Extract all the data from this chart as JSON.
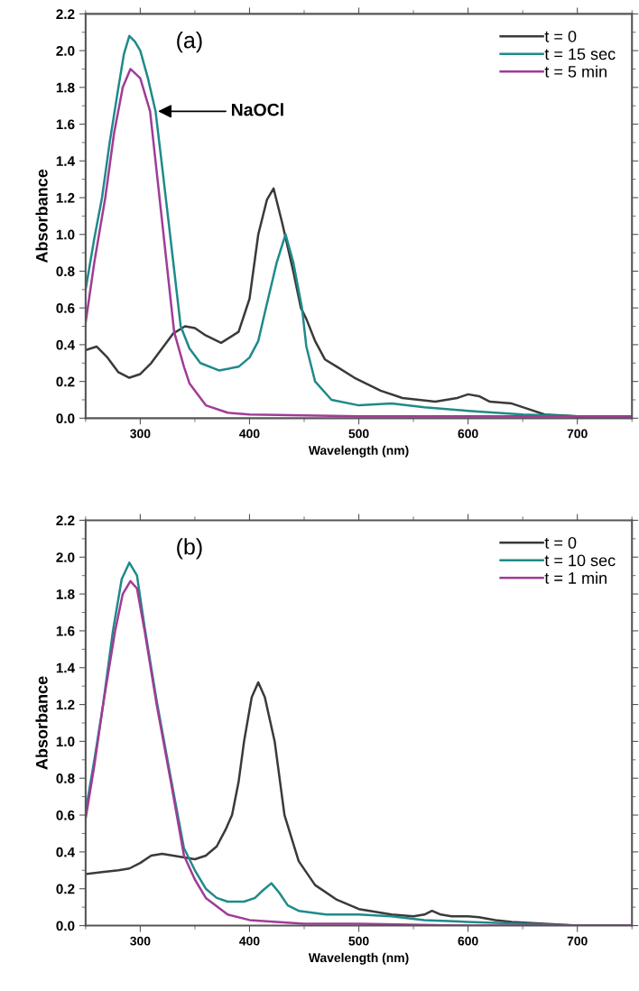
{
  "chart_data": [
    {
      "type": "line",
      "xlabel": "Wavelength (nm)",
      "ylabel": "Absorbance",
      "annotations": [
        "(a)",
        {
          "text": "NaOCl",
          "x": 314,
          "y": 1.67
        }
      ],
      "legend": "top right",
      "xlim": [
        250,
        750
      ],
      "xticks": [
        300,
        400,
        500,
        600,
        700
      ],
      "ylim": [
        0,
        2.2
      ],
      "yticks": [
        {
          "value": 0,
          "label": "0.0"
        },
        {
          "value": 0.2,
          "label": "0.2"
        },
        {
          "value": 0.4,
          "label": "0.4"
        },
        {
          "value": 0.6,
          "label": "0.6"
        },
        {
          "value": 0.8,
          "label": "0.8"
        },
        {
          "value": 1,
          "label": "1.0"
        },
        {
          "value": 1.2,
          "label": "1.2"
        },
        {
          "value": 1.4,
          "label": "1.4"
        },
        {
          "value": 1.6,
          "label": "1.6"
        },
        {
          "value": 1.8,
          "label": "1.8"
        },
        {
          "value": 2,
          "label": "2.0"
        },
        {
          "value": 2.2,
          "label": "2.2"
        }
      ],
      "series": [
        {
          "name": "t = 0",
          "color": "#3a3a3a",
          "x": [
            250,
            260,
            270,
            280,
            290,
            300,
            310,
            320,
            330,
            341,
            350,
            360,
            374,
            390,
            400,
            408,
            416,
            422,
            430,
            440,
            447,
            452,
            460,
            469,
            480,
            496,
            520,
            540,
            570,
            590,
            600,
            610,
            620,
            640,
            655,
            670,
            700,
            750
          ],
          "values": [
            0.37,
            0.39,
            0.33,
            0.25,
            0.22,
            0.24,
            0.3,
            0.38,
            0.46,
            0.5,
            0.49,
            0.45,
            0.41,
            0.47,
            0.65,
            1.0,
            1.19,
            1.25,
            1.06,
            0.8,
            0.6,
            0.54,
            0.42,
            0.32,
            0.28,
            0.22,
            0.15,
            0.11,
            0.09,
            0.11,
            0.13,
            0.12,
            0.09,
            0.08,
            0.05,
            0.02,
            0.01,
            0.01
          ]
        },
        {
          "name": "t = 15 sec",
          "color": "#1f8a8a",
          "x": [
            250,
            258,
            265,
            272,
            280,
            285,
            290,
            295,
            300,
            307,
            314,
            320,
            330,
            337,
            345,
            355,
            372,
            390,
            400,
            408,
            415,
            425,
            433,
            440,
            448,
            452,
            460,
            475,
            500,
            530,
            560,
            600,
            650,
            700,
            750
          ],
          "values": [
            0.7,
            0.98,
            1.2,
            1.5,
            1.8,
            1.98,
            2.08,
            2.05,
            2.0,
            1.85,
            1.67,
            1.37,
            0.86,
            0.5,
            0.38,
            0.3,
            0.26,
            0.28,
            0.33,
            0.42,
            0.6,
            0.85,
            1.0,
            0.85,
            0.6,
            0.39,
            0.2,
            0.1,
            0.07,
            0.08,
            0.06,
            0.04,
            0.02,
            0.01,
            0.01
          ]
        },
        {
          "name": "t = 5 min",
          "color": "#a03c96",
          "x": [
            250,
            258,
            268,
            276,
            284,
            291,
            300,
            309,
            320,
            331,
            340,
            345,
            360,
            380,
            400,
            450,
            500,
            600,
            750
          ],
          "values": [
            0.52,
            0.85,
            1.2,
            1.55,
            1.8,
            1.9,
            1.85,
            1.67,
            1.07,
            0.47,
            0.28,
            0.19,
            0.07,
            0.03,
            0.02,
            0.015,
            0.01,
            0.01,
            0.01
          ]
        }
      ]
    },
    {
      "type": "line",
      "xlabel": "Wavelength (nm)",
      "ylabel": "Absorbance",
      "annotations": [
        "(b)"
      ],
      "legend": "top right",
      "xlim": [
        250,
        750
      ],
      "xticks": [
        300,
        400,
        500,
        600,
        700
      ],
      "ylim": [
        0,
        2.2
      ],
      "yticks": [
        {
          "value": 0,
          "label": "0.0"
        },
        {
          "value": 0.2,
          "label": "0.2"
        },
        {
          "value": 0.4,
          "label": "0.4"
        },
        {
          "value": 0.6,
          "label": "0.6"
        },
        {
          "value": 0.8,
          "label": "0.8"
        },
        {
          "value": 1,
          "label": "1.0"
        },
        {
          "value": 1.2,
          "label": "1.2"
        },
        {
          "value": 1.4,
          "label": "1.4"
        },
        {
          "value": 1.6,
          "label": "1.6"
        },
        {
          "value": 1.8,
          "label": "1.8"
        },
        {
          "value": 2,
          "label": "2.0"
        },
        {
          "value": 2.2,
          "label": "2.2"
        }
      ],
      "series": [
        {
          "name": "t = 0",
          "color": "#3a3a3a",
          "x": [
            250,
            265,
            280,
            290,
            300,
            310,
            320,
            330,
            340,
            350,
            360,
            370,
            378,
            384,
            390,
            395,
            402,
            408,
            414,
            423,
            432,
            445,
            460,
            480,
            500,
            530,
            550,
            560,
            567,
            575,
            585,
            600,
            610,
            625,
            640,
            670,
            700,
            750
          ],
          "values": [
            0.28,
            0.29,
            0.3,
            0.31,
            0.34,
            0.38,
            0.39,
            0.38,
            0.37,
            0.36,
            0.38,
            0.43,
            0.52,
            0.6,
            0.78,
            1.0,
            1.24,
            1.32,
            1.24,
            1.0,
            0.6,
            0.35,
            0.22,
            0.14,
            0.09,
            0.06,
            0.05,
            0.06,
            0.08,
            0.06,
            0.05,
            0.05,
            0.045,
            0.03,
            0.02,
            0.01,
            0.0,
            0.0
          ]
        },
        {
          "name": "t = 10 sec",
          "color": "#1f8a8a",
          "x": [
            250,
            258,
            266,
            275,
            283,
            290,
            297,
            304,
            315,
            328,
            340,
            350,
            360,
            370,
            380,
            395,
            405,
            412,
            420,
            427,
            435,
            445,
            470,
            500,
            530,
            560,
            600,
            650,
            700,
            750
          ],
          "values": [
            0.62,
            0.9,
            1.2,
            1.6,
            1.88,
            1.97,
            1.9,
            1.62,
            1.22,
            0.8,
            0.42,
            0.3,
            0.2,
            0.15,
            0.13,
            0.13,
            0.15,
            0.19,
            0.23,
            0.18,
            0.11,
            0.08,
            0.06,
            0.06,
            0.05,
            0.03,
            0.02,
            0.01,
            0.0,
            0.0
          ]
        },
        {
          "name": "t = 1 min",
          "color": "#a03c96",
          "x": [
            250,
            258,
            266,
            277,
            284,
            291,
            297,
            304,
            315,
            328,
            340,
            350,
            360,
            380,
            400,
            450,
            500,
            600,
            750
          ],
          "values": [
            0.58,
            0.87,
            1.2,
            1.6,
            1.8,
            1.87,
            1.83,
            1.6,
            1.2,
            0.78,
            0.38,
            0.25,
            0.15,
            0.06,
            0.03,
            0.01,
            0.01,
            0.0,
            0.0
          ]
        }
      ]
    }
  ]
}
